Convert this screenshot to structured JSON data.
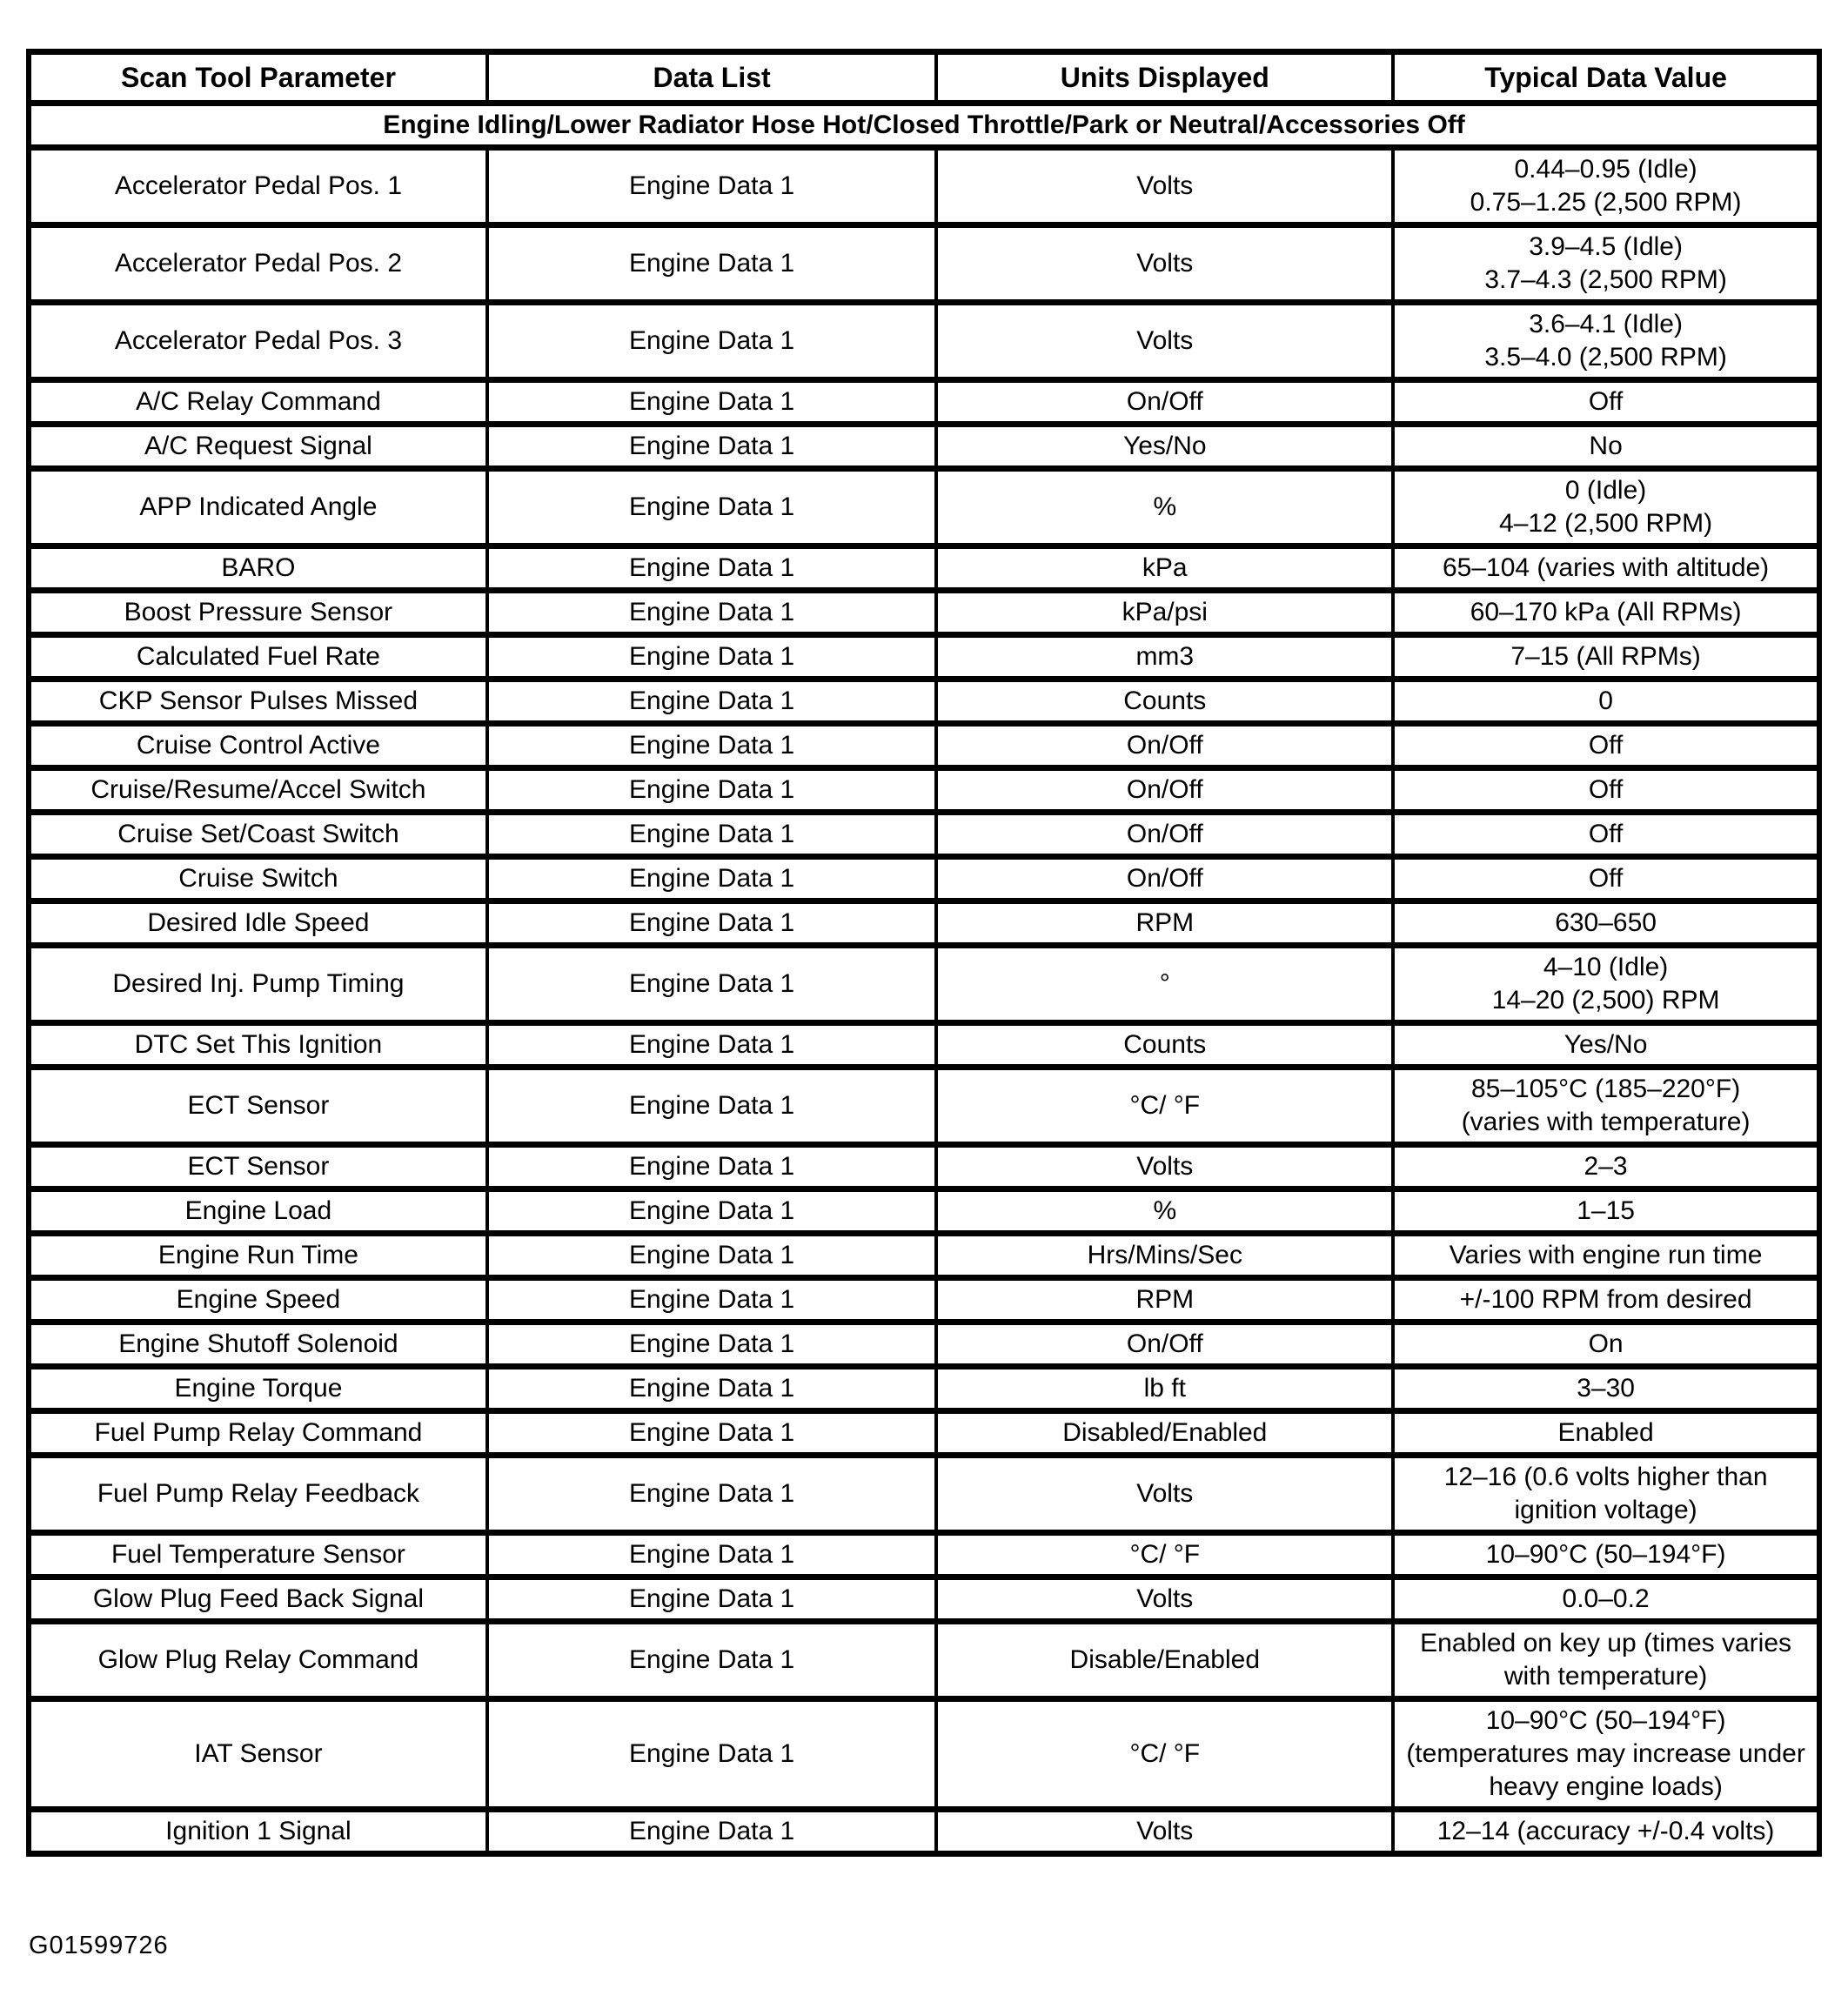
{
  "table": {
    "headers": [
      "Scan Tool Parameter",
      "Data List",
      "Units Displayed",
      "Typical Data Value"
    ],
    "condition_banner": "Engine Idling/Lower Radiator Hose Hot/Closed Throttle/Park or Neutral/Accessories Off",
    "rows": [
      {
        "parameter": "Accelerator Pedal Pos. 1",
        "data_list": "Engine Data 1",
        "units": "Volts",
        "value": "0.44–0.95 (Idle)\n0.75–1.25 (2,500 RPM)"
      },
      {
        "parameter": "Accelerator Pedal Pos. 2",
        "data_list": "Engine Data 1",
        "units": "Volts",
        "value": "3.9–4.5 (Idle)\n3.7–4.3 (2,500 RPM)"
      },
      {
        "parameter": "Accelerator Pedal Pos. 3",
        "data_list": "Engine Data 1",
        "units": "Volts",
        "value": "3.6–4.1 (Idle)\n3.5–4.0 (2,500 RPM)"
      },
      {
        "parameter": "A/C Relay Command",
        "data_list": "Engine Data 1",
        "units": "On/Off",
        "value": "Off"
      },
      {
        "parameter": "A/C Request Signal",
        "data_list": "Engine Data 1",
        "units": "Yes/No",
        "value": "No"
      },
      {
        "parameter": "APP Indicated Angle",
        "data_list": "Engine Data 1",
        "units": "%",
        "value": "0 (Idle)\n4–12 (2,500 RPM)"
      },
      {
        "parameter": "BARO",
        "data_list": "Engine Data 1",
        "units": "kPa",
        "value": "65–104 (varies with altitude)"
      },
      {
        "parameter": "Boost Pressure Sensor",
        "data_list": "Engine Data 1",
        "units": "kPa/psi",
        "value": "60–170 kPa (All RPMs)"
      },
      {
        "parameter": "Calculated Fuel Rate",
        "data_list": "Engine Data 1",
        "units": "mm3",
        "value": "7–15 (All RPMs)"
      },
      {
        "parameter": "CKP Sensor Pulses Missed",
        "data_list": "Engine Data 1",
        "units": "Counts",
        "value": "0"
      },
      {
        "parameter": "Cruise Control Active",
        "data_list": "Engine Data 1",
        "units": "On/Off",
        "value": "Off"
      },
      {
        "parameter": "Cruise/Resume/Accel Switch",
        "data_list": "Engine Data 1",
        "units": "On/Off",
        "value": "Off"
      },
      {
        "parameter": "Cruise Set/Coast Switch",
        "data_list": "Engine Data 1",
        "units": "On/Off",
        "value": "Off"
      },
      {
        "parameter": "Cruise Switch",
        "data_list": "Engine Data 1",
        "units": "On/Off",
        "value": "Off"
      },
      {
        "parameter": "Desired Idle Speed",
        "data_list": "Engine Data 1",
        "units": "RPM",
        "value": "630–650"
      },
      {
        "parameter": "Desired Inj. Pump Timing",
        "data_list": "Engine Data 1",
        "units": "°",
        "value": "4–10 (Idle)\n14–20 (2,500) RPM"
      },
      {
        "parameter": "DTC Set This Ignition",
        "data_list": "Engine Data 1",
        "units": "Counts",
        "value": "Yes/No"
      },
      {
        "parameter": "ECT Sensor",
        "data_list": "Engine Data 1",
        "units": "°C/ °F",
        "value": "85–105°C (185–220°F)\n(varies with temperature)"
      },
      {
        "parameter": "ECT Sensor",
        "data_list": "Engine Data 1",
        "units": "Volts",
        "value": "2–3"
      },
      {
        "parameter": "Engine Load",
        "data_list": "Engine Data 1",
        "units": "%",
        "value": "1–15"
      },
      {
        "parameter": "Engine Run Time",
        "data_list": "Engine Data 1",
        "units": "Hrs/Mins/Sec",
        "value": "Varies with engine run time"
      },
      {
        "parameter": "Engine Speed",
        "data_list": "Engine Data 1",
        "units": "RPM",
        "value": "+/-100 RPM from desired"
      },
      {
        "parameter": "Engine Shutoff Solenoid",
        "data_list": "Engine Data 1",
        "units": "On/Off",
        "value": "On"
      },
      {
        "parameter": "Engine Torque",
        "data_list": "Engine Data 1",
        "units": "lb ft",
        "value": "3–30"
      },
      {
        "parameter": "Fuel Pump Relay Command",
        "data_list": "Engine Data 1",
        "units": "Disabled/Enabled",
        "value": "Enabled"
      },
      {
        "parameter": "Fuel Pump Relay Feedback",
        "data_list": "Engine Data 1",
        "units": "Volts",
        "value": "12–16 (0.6 volts higher than ignition voltage)"
      },
      {
        "parameter": "Fuel Temperature Sensor",
        "data_list": "Engine Data 1",
        "units": "°C/ °F",
        "value": "10–90°C (50–194°F)"
      },
      {
        "parameter": "Glow Plug Feed Back Signal",
        "data_list": "Engine Data 1",
        "units": "Volts",
        "value": "0.0–0.2"
      },
      {
        "parameter": "Glow Plug Relay Command",
        "data_list": "Engine Data 1",
        "units": "Disable/Enabled",
        "value": "Enabled on key up (times varies with temperature)"
      },
      {
        "parameter": "IAT Sensor",
        "data_list": "Engine Data 1",
        "units": "°C/ °F",
        "value": "10–90°C (50–194°F)\n(temperatures may increase under heavy engine loads)"
      },
      {
        "parameter": "Ignition 1 Signal",
        "data_list": "Engine Data 1",
        "units": "Volts",
        "value": "12–14 (accuracy +/-0.4 volts)"
      }
    ]
  },
  "footer": {
    "figure_id": "G01599726"
  }
}
